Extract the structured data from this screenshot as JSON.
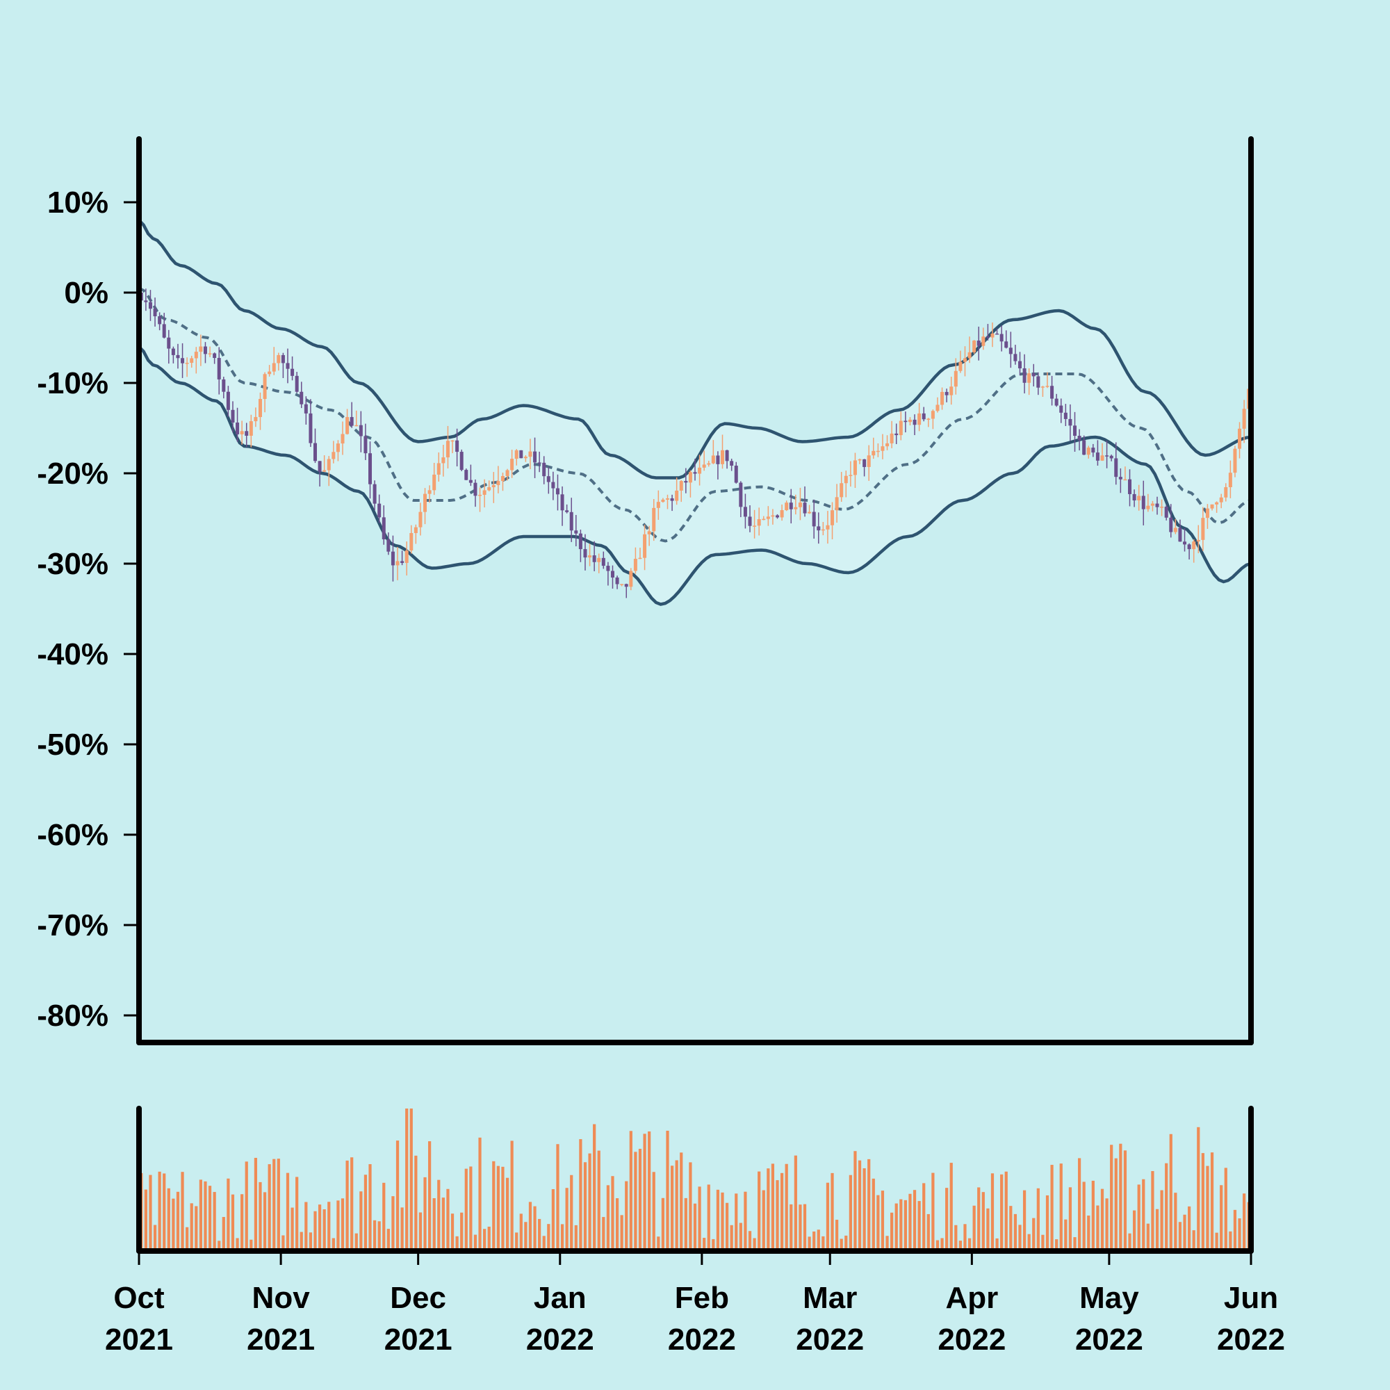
{
  "colors": {
    "background": "#c9eef0",
    "band_fill": "#d4f2f4",
    "band_line": "#2e5470",
    "middle_line": "#4f6f86",
    "up_candle": "#f4a070",
    "down_candle": "#6b4f8c",
    "volume_bar": "#ef8b55",
    "axis": "#000000"
  },
  "chart_data": [
    {
      "type": "candlestick",
      "title": "",
      "xlabel": "",
      "ylabel": "",
      "xlim": [
        "2021-10-01",
        "2022-06-01"
      ],
      "ylim": [
        -83,
        17
      ],
      "y_ticks": [
        10,
        0,
        -10,
        -20,
        -30,
        -40,
        -50,
        -60,
        -70,
        -80
      ],
      "y_tick_labels": [
        "10%",
        "0%",
        "-10%",
        "-20%",
        "-30%",
        "-40%",
        "-50%",
        "-60%",
        "-70%",
        "-80%"
      ],
      "grid": false,
      "price_path": [
        [
          "2021-10-01",
          0
        ],
        [
          "2021-10-10",
          -8
        ],
        [
          "2021-10-15",
          -6
        ],
        [
          "2021-10-24",
          -16
        ],
        [
          "2021-10-31",
          -7
        ],
        [
          "2021-11-04",
          -10
        ],
        [
          "2021-11-10",
          -20
        ],
        [
          "2021-11-16",
          -14
        ],
        [
          "2021-11-26",
          -30
        ],
        [
          "2021-12-08",
          -17
        ],
        [
          "2021-12-14",
          -22
        ],
        [
          "2021-12-24",
          -18
        ],
        [
          "2022-01-10",
          -30
        ],
        [
          "2022-01-14",
          -33
        ],
        [
          "2022-01-24",
          -23
        ],
        [
          "2022-01-31",
          -20
        ],
        [
          "2022-02-06",
          -18
        ],
        [
          "2022-02-12",
          -26
        ],
        [
          "2022-02-22",
          -23
        ],
        [
          "2022-02-27",
          -26
        ],
        [
          "2022-03-07",
          -19
        ],
        [
          "2022-03-20",
          -14
        ],
        [
          "2022-04-05",
          -5
        ],
        [
          "2022-04-15",
          -10
        ],
        [
          "2022-04-28",
          -18
        ],
        [
          "2022-05-11",
          -24
        ],
        [
          "2022-05-18",
          -28
        ],
        [
          "2022-05-26",
          -22
        ],
        [
          "2022-06-01",
          -11
        ]
      ],
      "bollinger_bands": {
        "upper": [
          [
            "2021-10-01",
            8
          ],
          [
            "2021-10-04",
            6
          ],
          [
            "2021-10-10",
            3
          ],
          [
            "2021-10-18",
            1
          ],
          [
            "2021-10-24",
            -2
          ],
          [
            "2021-11-01",
            -4
          ],
          [
            "2021-11-10",
            -6
          ],
          [
            "2021-11-18",
            -10
          ],
          [
            "2021-12-01",
            -16.5
          ],
          [
            "2021-12-08",
            -16
          ],
          [
            "2021-12-15",
            -14
          ],
          [
            "2021-12-24",
            -12.5
          ],
          [
            "2022-01-05",
            -14
          ],
          [
            "2022-01-12",
            -18
          ],
          [
            "2022-01-22",
            -20.5
          ],
          [
            "2022-01-27",
            -20.5
          ],
          [
            "2022-02-06",
            -14.5
          ],
          [
            "2022-02-13",
            -15
          ],
          [
            "2022-02-23",
            -16.5
          ],
          [
            "2022-03-05",
            -16
          ],
          [
            "2022-03-16",
            -13
          ],
          [
            "2022-03-28",
            -8
          ],
          [
            "2022-04-10",
            -3
          ],
          [
            "2022-04-20",
            -2
          ],
          [
            "2022-04-28",
            -4
          ],
          [
            "2022-05-09",
            -11
          ],
          [
            "2022-05-22",
            -18
          ],
          [
            "2022-06-01",
            -16
          ]
        ],
        "middle": [
          [
            "2021-10-01",
            0.5
          ],
          [
            "2021-10-07",
            -3
          ],
          [
            "2021-10-16",
            -5
          ],
          [
            "2021-10-24",
            -10
          ],
          [
            "2021-11-02",
            -11
          ],
          [
            "2021-11-12",
            -13
          ],
          [
            "2021-11-20",
            -16
          ],
          [
            "2021-11-30",
            -23
          ],
          [
            "2021-12-08",
            -23
          ],
          [
            "2021-12-18",
            -21
          ],
          [
            "2021-12-26",
            -19
          ],
          [
            "2022-01-05",
            -20
          ],
          [
            "2022-01-15",
            -24
          ],
          [
            "2022-01-24",
            -27.5
          ],
          [
            "2022-02-04",
            -22
          ],
          [
            "2022-02-14",
            -21.5
          ],
          [
            "2022-02-24",
            -23
          ],
          [
            "2022-03-04",
            -24
          ],
          [
            "2022-03-18",
            -19
          ],
          [
            "2022-03-30",
            -14
          ],
          [
            "2022-04-12",
            -9
          ],
          [
            "2022-04-24",
            -9
          ],
          [
            "2022-05-08",
            -15
          ],
          [
            "2022-05-18",
            -22
          ],
          [
            "2022-05-25",
            -25.5
          ],
          [
            "2022-06-01",
            -23
          ]
        ],
        "lower": [
          [
            "2021-10-01",
            -6
          ],
          [
            "2021-10-04",
            -8
          ],
          [
            "2021-10-10",
            -10
          ],
          [
            "2021-10-18",
            -12
          ],
          [
            "2021-10-24",
            -17
          ],
          [
            "2021-11-02",
            -18
          ],
          [
            "2021-11-10",
            -20
          ],
          [
            "2021-11-18",
            -22
          ],
          [
            "2021-11-26",
            -28
          ],
          [
            "2021-12-04",
            -30.5
          ],
          [
            "2021-12-12",
            -30
          ],
          [
            "2021-12-24",
            -27
          ],
          [
            "2022-01-04",
            -27
          ],
          [
            "2022-01-10",
            -28
          ],
          [
            "2022-01-16",
            -31
          ],
          [
            "2022-01-23",
            -34.5
          ],
          [
            "2022-02-04",
            -29
          ],
          [
            "2022-02-14",
            -28.5
          ],
          [
            "2022-02-24",
            -30
          ],
          [
            "2022-03-05",
            -31
          ],
          [
            "2022-03-18",
            -27
          ],
          [
            "2022-03-30",
            -23
          ],
          [
            "2022-04-10",
            -20
          ],
          [
            "2022-04-18",
            -17
          ],
          [
            "2022-04-28",
            -16
          ],
          [
            "2022-05-09",
            -19
          ],
          [
            "2022-05-17",
            -26
          ],
          [
            "2022-05-26",
            -32
          ],
          [
            "2022-06-01",
            -30
          ]
        ]
      }
    },
    {
      "type": "bar",
      "title": "",
      "xlabel": "",
      "ylabel": "",
      "xlim": [
        "2021-10-01",
        "2022-06-01"
      ],
      "x_ticks": [
        "2021-10-01",
        "2021-11-01",
        "2021-12-01",
        "2022-01-01",
        "2022-02-01",
        "2022-03-01",
        "2022-04-01",
        "2022-05-01",
        "2022-06-01"
      ],
      "x_tick_labels": [
        [
          "Oct",
          "2021"
        ],
        [
          "Nov",
          "2021"
        ],
        [
          "Dec",
          "2021"
        ],
        [
          "Jan",
          "2022"
        ],
        [
          "Feb",
          "2022"
        ],
        [
          "Mar",
          "2022"
        ],
        [
          "Apr",
          "2022"
        ],
        [
          "May",
          "2022"
        ],
        [
          "Jun",
          "2022"
        ]
      ],
      "series_name": "volume",
      "volume_profile": [
        [
          "2021-10-01",
          40
        ],
        [
          "2021-10-15",
          45
        ],
        [
          "2021-11-01",
          50
        ],
        [
          "2021-11-15",
          55
        ],
        [
          "2021-11-28",
          80
        ],
        [
          "2021-12-15",
          60
        ],
        [
          "2022-01-01",
          55
        ],
        [
          "2022-01-14",
          75
        ],
        [
          "2022-02-01",
          55
        ],
        [
          "2022-02-15",
          50
        ],
        [
          "2022-03-01",
          55
        ],
        [
          "2022-03-15",
          45
        ],
        [
          "2022-04-01",
          45
        ],
        [
          "2022-04-15",
          45
        ],
        [
          "2022-05-01",
          55
        ],
        [
          "2022-05-18",
          70
        ],
        [
          "2022-06-01",
          35
        ]
      ]
    }
  ]
}
